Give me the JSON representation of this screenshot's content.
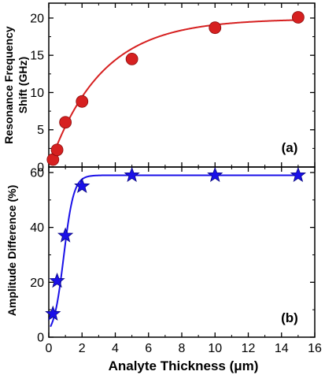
{
  "chart_data": [
    {
      "type": "scatter",
      "panel_label": "(a)",
      "ylabel_line1": "Resonance Frequency",
      "ylabel_line2": "Shift (GHz)",
      "xlim": [
        0,
        16
      ],
      "ylim": [
        0,
        22
      ],
      "x_ticks": [
        0,
        2,
        4,
        6,
        8,
        10,
        12,
        14,
        16
      ],
      "y_ticks": [
        0,
        5,
        10,
        15,
        20
      ],
      "grid": false,
      "marker": "circle",
      "color": "#d62020",
      "fit_line": true,
      "fit_model": {
        "kind": "exp_rise",
        "ymax": 19.9,
        "k": 0.32
      },
      "series": [
        {
          "x": [
            0.25,
            0.5,
            1,
            2,
            5,
            10,
            15
          ],
          "y": [
            1.0,
            2.3,
            6.0,
            8.8,
            14.5,
            18.7,
            20.1
          ]
        }
      ]
    },
    {
      "type": "scatter",
      "panel_label": "(b)",
      "ylabel": "Amplitude Difference (%)",
      "xlabel": "Analyte Thickness (μm)",
      "xlim": [
        0,
        16
      ],
      "ylim": [
        0,
        62
      ],
      "x_ticks": [
        0,
        2,
        4,
        6,
        8,
        10,
        12,
        14,
        16
      ],
      "y_ticks": [
        0,
        20,
        40,
        60
      ],
      "grid": false,
      "marker": "star",
      "color": "#1a10e8",
      "fit_line": true,
      "fit_model": {
        "kind": "sigmoid",
        "ymax": 59,
        "x0": 0.9,
        "w": 0.3
      },
      "series": [
        {
          "x": [
            0.25,
            0.5,
            1,
            2,
            5,
            10,
            15
          ],
          "y": [
            8.5,
            20.5,
            37,
            55,
            59,
            59,
            59
          ]
        }
      ]
    }
  ]
}
